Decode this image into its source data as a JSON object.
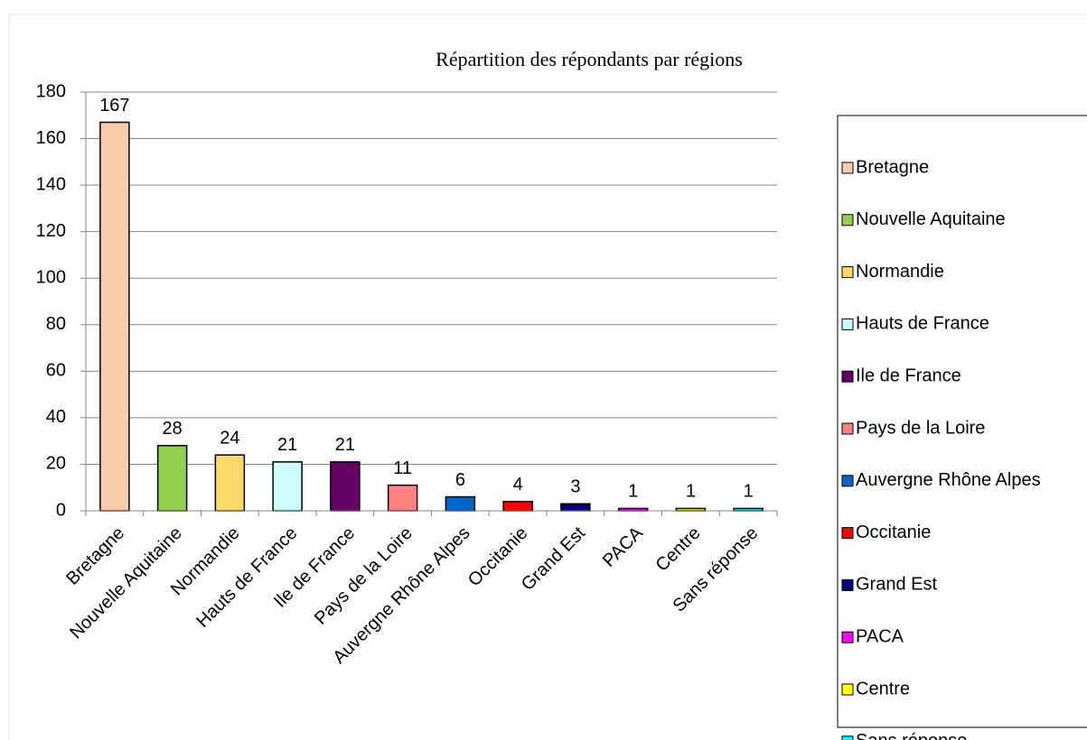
{
  "chart_data": {
    "type": "bar",
    "title": "Répartition des répondants par régions",
    "categories": [
      "Bretagne",
      "Nouvelle Aquitaine",
      "Normandie",
      "Hauts de France",
      "Ile de France",
      "Pays de la Loire",
      "Auvergne Rhône Alpes",
      "Occitanie",
      "Grand Est",
      "PACA",
      "Centre",
      "Sans réponse"
    ],
    "values": [
      167,
      28,
      24,
      21,
      21,
      11,
      6,
      4,
      3,
      1,
      1,
      1
    ],
    "colors": [
      "#f8cbad",
      "#92d050",
      "#ffd966",
      "#ccffff",
      "#660066",
      "#ff8080",
      "#0066cc",
      "#ff0000",
      "#000080",
      "#ff00ff",
      "#ffff00",
      "#00ffff"
    ],
    "ylim": [
      0,
      180
    ],
    "yticks": [
      0,
      20,
      40,
      60,
      80,
      100,
      120,
      140,
      160,
      180
    ],
    "grid": true,
    "legend": "right"
  }
}
